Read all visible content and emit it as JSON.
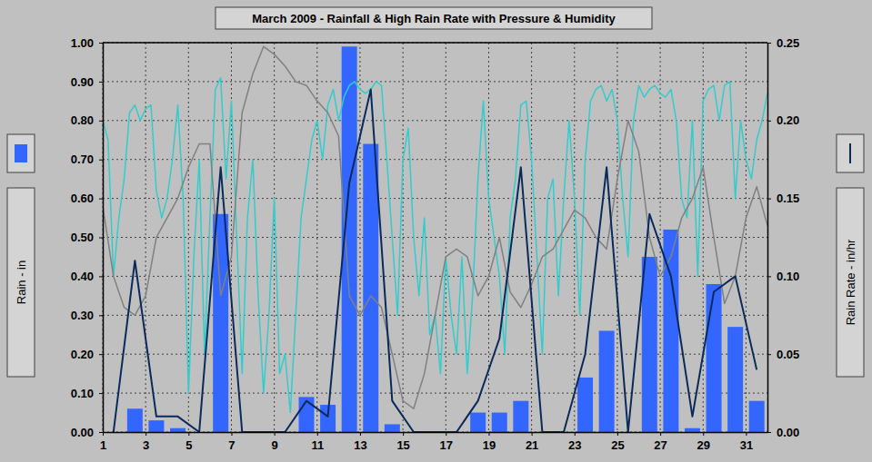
{
  "chart_data": {
    "type": "bar",
    "title": "March 2009 - Rainfall & High Rain Rate with Pressure & Humidity",
    "y_label": "Rain - in",
    "y2_label": "Rain Rate - in/hr",
    "grid": true,
    "xlim": [
      1,
      32
    ],
    "xticks": [
      1,
      3,
      5,
      7,
      9,
      11,
      13,
      15,
      17,
      19,
      21,
      23,
      25,
      27,
      29,
      31
    ],
    "ylim": [
      0,
      1
    ],
    "yticks": [
      {
        "value": 0,
        "label": "0.00"
      },
      {
        "value": 0.1,
        "label": "0.10"
      },
      {
        "value": 0.2,
        "label": "0.20"
      },
      {
        "value": 0.3,
        "label": "0.30"
      },
      {
        "value": 0.4,
        "label": "0.40"
      },
      {
        "value": 0.5,
        "label": "0.50"
      },
      {
        "value": 0.6,
        "label": "0.60"
      },
      {
        "value": 0.7,
        "label": "0.70"
      },
      {
        "value": 0.8,
        "label": "0.80"
      },
      {
        "value": 0.9,
        "label": "0.90"
      },
      {
        "value": 1,
        "label": "1.00"
      }
    ],
    "y2lim": [
      0,
      0.25
    ],
    "y2ticks": [
      {
        "value": 0,
        "label": "0.00"
      },
      {
        "value": 0.05,
        "label": "0.05"
      },
      {
        "value": 0.1,
        "label": "0.10"
      },
      {
        "value": 0.15,
        "label": "0.15"
      },
      {
        "value": 0.2,
        "label": "0.20"
      },
      {
        "value": 0.25,
        "label": "0.25"
      }
    ],
    "series": [
      {
        "type": "bar",
        "color": "#3366ff",
        "x": [
          1.5,
          2.5,
          3.5,
          4.5,
          5.5,
          6.5,
          7.5,
          8.5,
          9.5,
          10.5,
          11.5,
          12.5,
          13.5,
          14.5,
          15.5,
          16.5,
          17.5,
          18.5,
          19.5,
          20.5,
          21.5,
          22.5,
          23.5,
          24.5,
          25.5,
          26.5,
          27.5,
          28.5,
          29.5,
          30.5,
          31.5
        ],
        "values": [
          0,
          0.06,
          0.03,
          0.01,
          0,
          0.56,
          0,
          0,
          0,
          0.09,
          0.07,
          0.99,
          0.74,
          0.02,
          0,
          0,
          0,
          0.05,
          0.05,
          0.08,
          0,
          0,
          0.14,
          0.26,
          0,
          0.45,
          0.52,
          0.01,
          0.38,
          0.27,
          0.08
        ]
      },
      {
        "type": "line",
        "color": "#33cccc",
        "x": [
          1,
          1.25,
          1.5,
          1.75,
          2,
          2.25,
          2.5,
          2.75,
          3,
          3.25,
          3.5,
          3.75,
          4,
          4.25,
          4.5,
          4.75,
          5,
          5.25,
          5.5,
          5.75,
          6,
          6.25,
          6.5,
          6.75,
          7,
          7.25,
          7.5,
          7.75,
          8,
          8.25,
          8.5,
          8.75,
          9,
          9.25,
          9.5,
          9.75,
          10,
          10.25,
          10.5,
          10.75,
          11,
          11.25,
          11.5,
          11.75,
          12,
          12.25,
          12.5,
          12.75,
          13,
          13.25,
          13.5,
          13.75,
          14,
          14.25,
          14.5,
          14.75,
          15,
          15.25,
          15.5,
          15.75,
          16,
          16.25,
          16.5,
          16.75,
          17,
          17.25,
          17.5,
          17.75,
          18,
          18.25,
          18.5,
          18.75,
          19,
          19.25,
          19.5,
          19.75,
          20,
          20.25,
          20.5,
          20.75,
          21,
          21.25,
          21.5,
          21.75,
          22,
          22.25,
          22.5,
          22.75,
          23,
          23.25,
          23.5,
          23.75,
          24,
          24.25,
          24.5,
          24.75,
          25,
          25.25,
          25.5,
          25.75,
          26,
          26.25,
          26.5,
          26.75,
          27,
          27.25,
          27.5,
          27.75,
          28,
          28.25,
          28.5,
          28.75,
          29,
          29.25,
          29.5,
          29.75,
          30,
          30.25,
          30.5,
          30.75,
          31,
          31.25,
          31.5,
          31.75,
          32
        ],
        "values": [
          0.8,
          0.75,
          0.4,
          0.55,
          0.65,
          0.82,
          0.84,
          0.8,
          0.83,
          0.84,
          0.62,
          0.55,
          0.6,
          0.7,
          0.84,
          0.6,
          0.1,
          0.45,
          0.7,
          0.2,
          0.55,
          0.88,
          0.91,
          0.65,
          0.85,
          0.5,
          0.15,
          0.55,
          0.7,
          0.35,
          0.1,
          0.3,
          0.6,
          0.15,
          0.2,
          0.05,
          0.3,
          0.55,
          0.65,
          0.75,
          0.8,
          0.7,
          0.84,
          0.88,
          0.8,
          0.86,
          0.89,
          0.9,
          0.88,
          0.87,
          0.88,
          0.9,
          0.89,
          0.7,
          0.5,
          0.3,
          0.7,
          0.78,
          0.5,
          0.35,
          0.55,
          0.25,
          0.3,
          0.15,
          0.45,
          0.3,
          0.2,
          0.45,
          0.15,
          0.35,
          0.65,
          0.85,
          0.6,
          0.5,
          0.4,
          0.2,
          0.55,
          0.65,
          0.84,
          0.85,
          0.7,
          0.45,
          0.2,
          0.6,
          0.65,
          0.35,
          0.6,
          0.8,
          0.6,
          0.3,
          0.7,
          0.85,
          0.88,
          0.89,
          0.85,
          0.88,
          0.8,
          0.6,
          0.45,
          0.8,
          0.89,
          0.86,
          0.88,
          0.89,
          0.87,
          0.86,
          0.88,
          0.8,
          0.6,
          0.55,
          0.8,
          0.4,
          0.85,
          0.88,
          0.89,
          0.8,
          0.89,
          0.9,
          0.6,
          0.8,
          0.7,
          0.65,
          0.75,
          0.8,
          0.87
        ]
      },
      {
        "type": "line",
        "color": "#808080",
        "x": [
          1,
          1.5,
          2,
          2.5,
          3,
          3.5,
          4,
          4.5,
          5,
          5.5,
          6,
          6.5,
          7,
          7.5,
          8,
          8.5,
          9,
          9.5,
          10,
          10.5,
          11,
          11.5,
          12,
          12.5,
          13,
          13.5,
          14,
          14.5,
          15,
          15.5,
          16,
          16.5,
          17,
          17.5,
          18,
          18.5,
          19,
          19.5,
          20,
          20.5,
          21,
          21.5,
          22,
          22.5,
          23,
          23.5,
          24,
          24.5,
          25,
          25.5,
          26,
          26.5,
          27,
          27.5,
          28,
          28.5,
          29,
          29.5,
          30,
          30.5,
          31,
          31.5,
          32
        ],
        "values": [
          0.58,
          0.4,
          0.32,
          0.3,
          0.35,
          0.5,
          0.55,
          0.6,
          0.68,
          0.74,
          0.74,
          0.35,
          0.45,
          0.82,
          0.92,
          0.99,
          0.97,
          0.94,
          0.9,
          0.89,
          0.85,
          0.82,
          0.76,
          0.35,
          0.3,
          0.35,
          0.32,
          0.2,
          0.08,
          0.06,
          0.15,
          0.3,
          0.45,
          0.47,
          0.45,
          0.35,
          0.4,
          0.5,
          0.36,
          0.32,
          0.38,
          0.45,
          0.47,
          0.52,
          0.57,
          0.55,
          0.5,
          0.47,
          0.65,
          0.8,
          0.72,
          0.5,
          0.4,
          0.45,
          0.55,
          0.6,
          0.68,
          0.5,
          0.33,
          0.4,
          0.55,
          0.63,
          0.53
        ]
      },
      {
        "type": "line",
        "axis": "y2",
        "color": "#0a2a5c",
        "x": [
          1.5,
          2.5,
          3.5,
          4.5,
          5.5,
          6.5,
          7.5,
          8.5,
          9.5,
          10.5,
          11.5,
          12.5,
          13.5,
          14.5,
          15.5,
          16.5,
          17.5,
          18.5,
          19.5,
          20.5,
          21.5,
          22.5,
          23.5,
          24.5,
          25.5,
          26.5,
          27.5,
          28.5,
          29.5,
          30.5,
          31.5
        ],
        "values": [
          0,
          0.11,
          0.01,
          0.01,
          0,
          0.17,
          0,
          0,
          0,
          0.02,
          0.01,
          0.16,
          0.22,
          0.02,
          0,
          0,
          0,
          0.02,
          0.06,
          0.17,
          0,
          0,
          0.05,
          0.17,
          0,
          0.14,
          0.1,
          0.01,
          0.09,
          0.1,
          0.04
        ]
      }
    ]
  }
}
